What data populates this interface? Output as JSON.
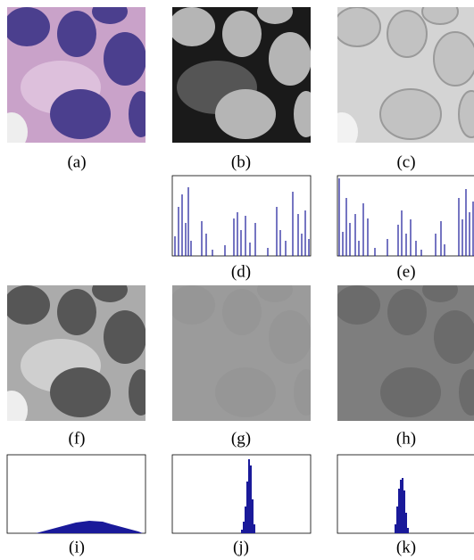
{
  "captions": [
    "(a)",
    "(b)",
    "(c)",
    "(d)",
    "(e)",
    "(f)",
    "(g)",
    "(h)",
    "(i)",
    "(j)",
    "(k)"
  ]
}
